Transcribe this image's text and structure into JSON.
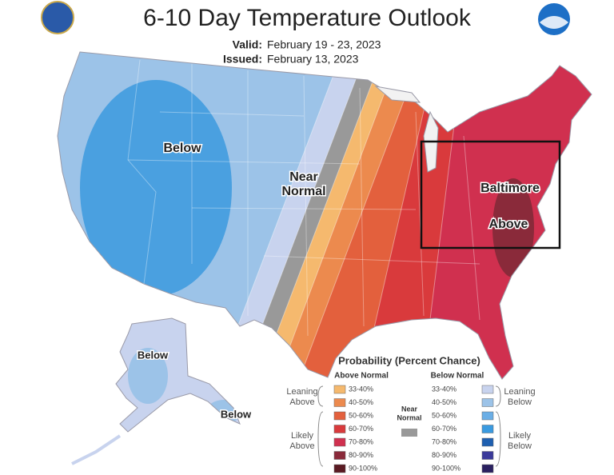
{
  "header": {
    "title": "6-10 Day Temperature Outlook",
    "valid_label": "Valid:",
    "valid": "February 19 - 23, 2023",
    "issued_label": "Issued:",
    "issued": "February 13, 2023"
  },
  "map_labels": {
    "west": "Below",
    "near_1": "Near",
    "near_2": "Normal",
    "city": "Baltimore",
    "east": "Above",
    "alaska": "Below",
    "aleutians": "Below"
  },
  "legend": {
    "title": "Probability (Percent Chance)",
    "above_heading": "Above Normal",
    "below_heading": "Below Normal",
    "above_ranges": [
      "33-40%",
      "40-50%",
      "50-60%",
      "60-70%",
      "70-80%",
      "80-90%",
      "90-100%"
    ],
    "below_ranges": [
      "33-40%",
      "40-50%",
      "50-60%",
      "60-70%",
      "70-80%",
      "80-90%",
      "90-100%"
    ],
    "leaning_above": [
      "Leaning",
      "Above"
    ],
    "likely_above": [
      "Likely",
      "Above"
    ],
    "near_normal": [
      "Near",
      "Normal"
    ],
    "leaning_below": [
      "Leaning",
      "Below"
    ],
    "likely_below": [
      "Likely",
      "Below"
    ]
  }
}
